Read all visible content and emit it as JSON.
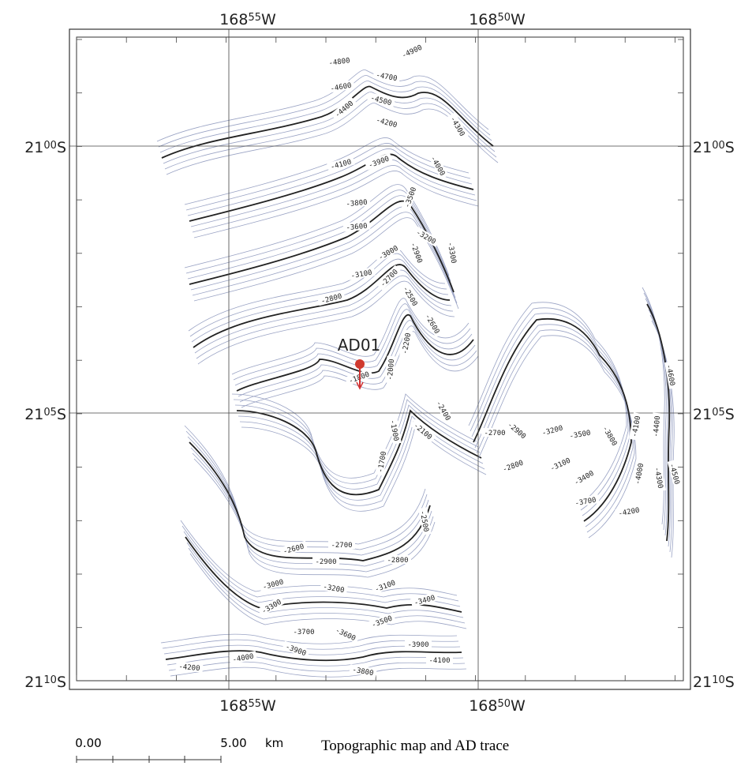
{
  "map": {
    "lon_labels": [
      {
        "deg": "168",
        "min": "55",
        "hemi": "W"
      },
      {
        "deg": "168",
        "min": "50",
        "hemi": "W"
      }
    ],
    "lat_labels": [
      {
        "deg": "21",
        "min": "00",
        "hemi": "S"
      },
      {
        "deg": "21",
        "min": "05",
        "hemi": "S"
      },
      {
        "deg": "21",
        "min": "10",
        "hemi": "S"
      }
    ],
    "station": "AD01",
    "contour_labels": [
      -4800,
      -4900,
      -4700,
      -4600,
      -4500,
      -4400,
      -4200,
      -4300,
      -4100,
      -3900,
      -4000,
      -3800,
      -3500,
      -3600,
      -3200,
      -3300,
      -2900,
      -3000,
      -3100,
      -2700,
      -2800,
      -2500,
      -2600,
      -2200,
      -1800,
      -2000,
      -2400,
      -1900,
      -2100,
      -1700,
      -2700,
      -2900,
      -3200,
      -3500,
      -3800,
      -4100,
      -4400,
      -4600,
      -2800,
      -3100,
      -3400,
      -4000,
      -4300,
      -4500,
      -3700,
      -4200,
      -2500,
      -2600,
      -2700,
      -2900,
      -2800,
      -3000,
      -3200,
      -3100,
      -3300,
      -3400,
      -3500,
      -3700,
      -3600,
      -3900,
      -3900,
      -4000,
      -4100,
      -4200,
      -3800
    ],
    "scale": {
      "start": "0.00",
      "end": "5.00",
      "unit": "km"
    },
    "caption": "Topographic map and AD trace"
  }
}
